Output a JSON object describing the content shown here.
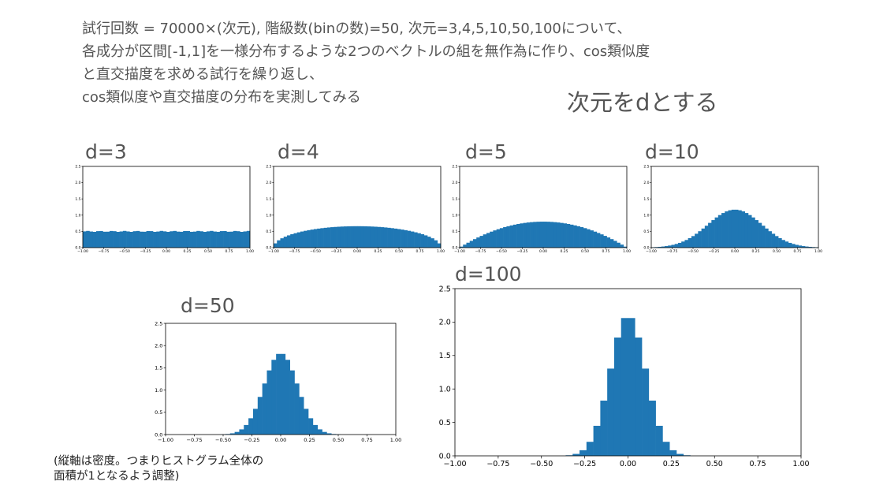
{
  "description": {
    "lines": [
      "試行回数 = 70000×(次元), 階級数(binの数)=50, 次元=3,4,5,10,50,100について、",
      "各成分が区間[-1,1]を一様分布するような2つのベクトルの組を無作為に作り、cos類似度",
      "と直交描度を求める試行を繰り返し、",
      "cos類似度や直交描度の分布を実測してみる"
    ]
  },
  "subtitle": "次元をdとする",
  "footnote": {
    "lines": [
      "(縦軸は密度。つまりヒストグラム全体の",
      "面積が1となるよう調整)"
    ]
  },
  "colors": {
    "bar": "#1f77b4",
    "text": "#555555"
  },
  "chart_data": [
    {
      "type": "bar",
      "label": "d=3",
      "dimension": 3,
      "bins": 50,
      "xlim": [
        -1,
        1
      ],
      "ylim": [
        0,
        2.5
      ],
      "xticks": [
        "−1.00",
        "−0.75",
        "−0.50",
        "−0.25",
        "0.00",
        "0.25",
        "0.50",
        "0.75",
        "1.00"
      ],
      "yticks": [
        "0.0",
        "0.5",
        "1.0",
        "1.5",
        "2.0",
        "2.5"
      ],
      "density_peak": 0.5
    },
    {
      "type": "bar",
      "label": "d=4",
      "dimension": 4,
      "bins": 50,
      "xlim": [
        -1,
        1
      ],
      "ylim": [
        0,
        2.5
      ],
      "xticks": [
        "−1.00",
        "−0.75",
        "−0.50",
        "−0.25",
        "0.00",
        "0.25",
        "0.50",
        "0.75",
        "1.00"
      ],
      "yticks": [
        "0.0",
        "0.5",
        "1.0",
        "1.5",
        "2.0",
        "2.5"
      ],
      "density_peak": 0.66
    },
    {
      "type": "bar",
      "label": "d=5",
      "dimension": 5,
      "bins": 50,
      "xlim": [
        -1,
        1
      ],
      "ylim": [
        0,
        2.5
      ],
      "xticks": [
        "−1.00",
        "−0.75",
        "−0.50",
        "−0.25",
        "0.00",
        "0.25",
        "0.50",
        "0.75",
        "1.00"
      ],
      "yticks": [
        "0.0",
        "0.5",
        "1.0",
        "1.5",
        "2.0",
        "2.5"
      ],
      "density_peak": 0.8
    },
    {
      "type": "bar",
      "label": "d=10",
      "dimension": 10,
      "bins": 50,
      "xlim": [
        -1,
        1
      ],
      "ylim": [
        0,
        2.5
      ],
      "xticks": [
        "−1.00",
        "−0.75",
        "−0.50",
        "−0.25",
        "0.00",
        "0.25",
        "0.50",
        "0.75",
        "1.00"
      ],
      "yticks": [
        "0.0",
        "0.5",
        "1.0",
        "1.5",
        "2.0",
        "2.5"
      ],
      "density_peak": 1.17
    },
    {
      "type": "bar",
      "label": "d=50",
      "dimension": 50,
      "bins": 50,
      "xlim": [
        -1,
        1
      ],
      "ylim": [
        0,
        2.5
      ],
      "xticks": [
        "−1.00",
        "−0.75",
        "−0.50",
        "−0.25",
        "0.00",
        "0.25",
        "0.50",
        "0.75",
        "1.00"
      ],
      "yticks": [
        "0.0",
        "0.5",
        "1.0",
        "1.5",
        "2.0",
        "2.5"
      ],
      "density_peak": 1.83
    },
    {
      "type": "bar",
      "label": "d=100",
      "dimension": 100,
      "bins": 50,
      "xlim": [
        -1,
        1
      ],
      "ylim": [
        0,
        2.5
      ],
      "xticks": [
        "−1.00",
        "−0.75",
        "−0.50",
        "−0.25",
        "0.00",
        "0.25",
        "0.50",
        "0.75",
        "1.00"
      ],
      "yticks": [
        "0.0",
        "0.5",
        "1.0",
        "1.5",
        "2.0",
        "2.5"
      ],
      "density_peak": 2.1
    }
  ]
}
